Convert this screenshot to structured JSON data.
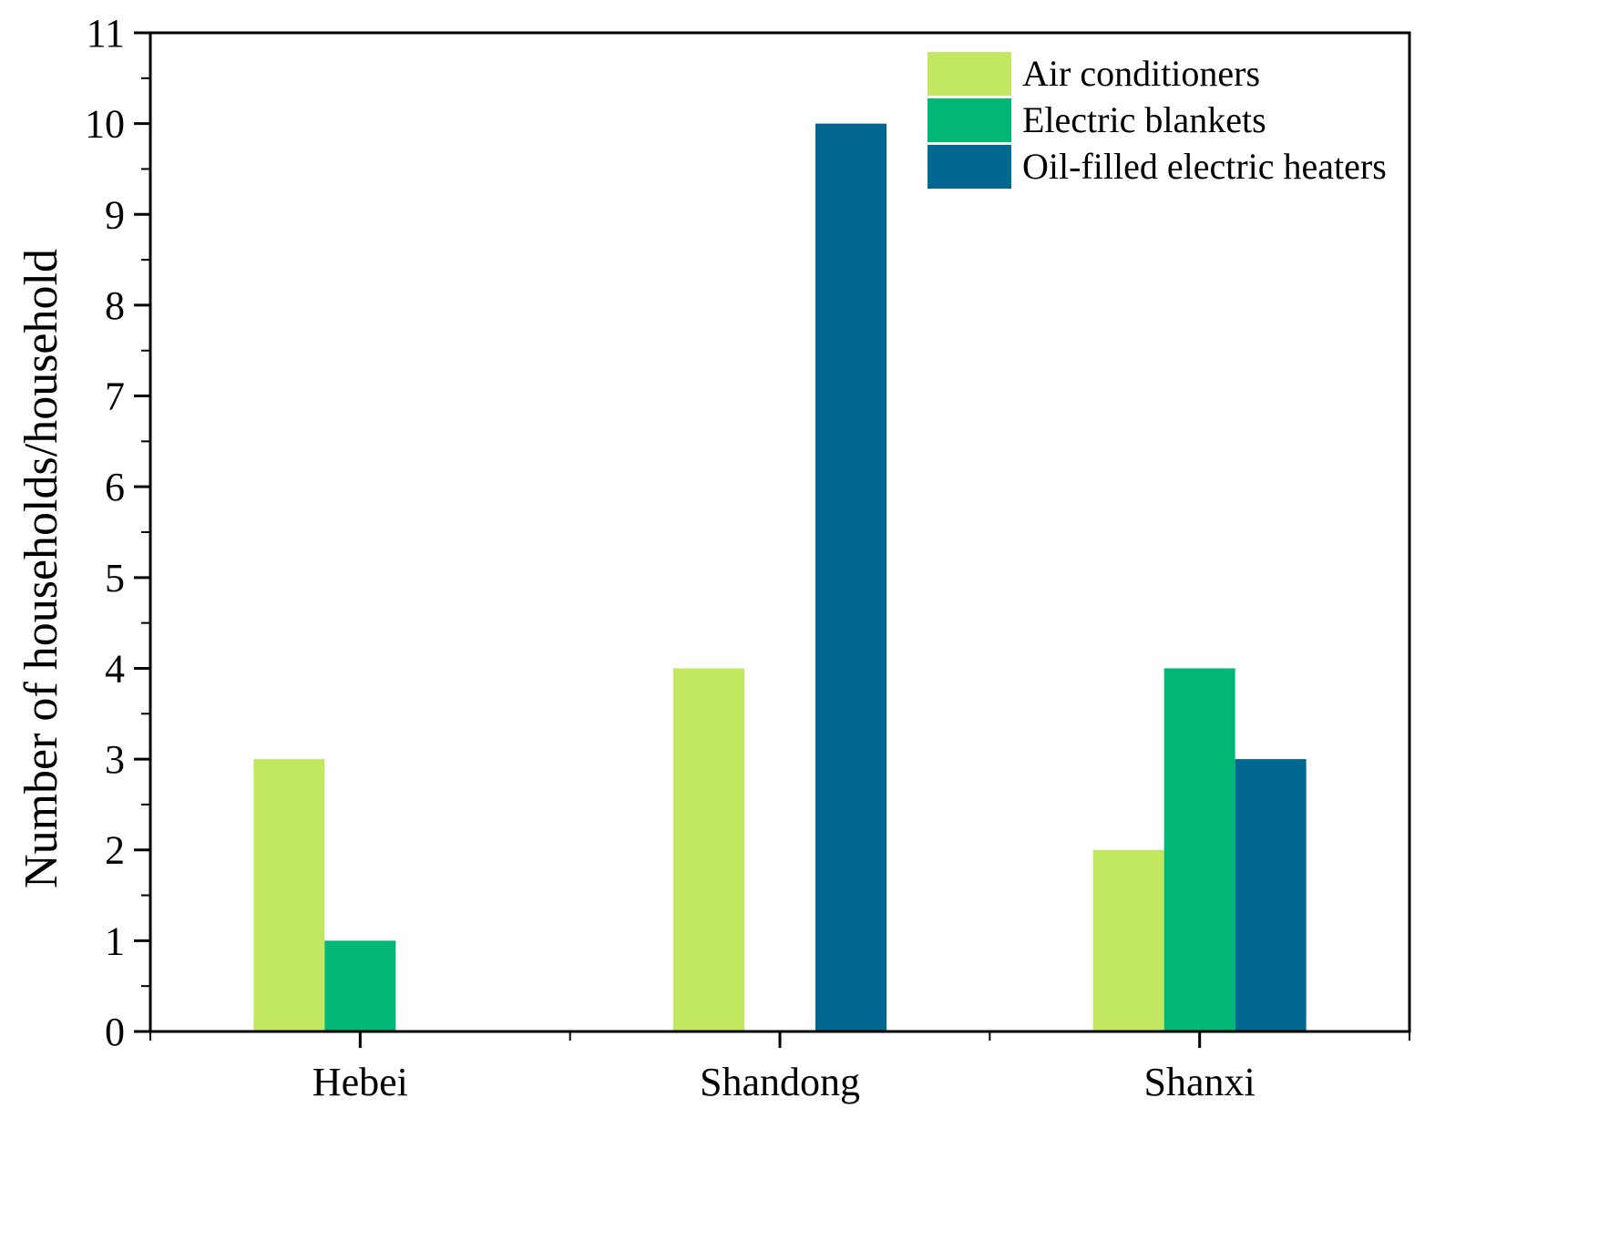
{
  "chart_data": {
    "type": "bar",
    "title": "",
    "xlabel": "",
    "ylabel": "Number of households/household",
    "categories": [
      "Hebei",
      "Shandong",
      "Shanxi"
    ],
    "series": [
      {
        "name": "Air conditioners",
        "color": "#c2e862",
        "values": [
          3,
          4,
          2
        ]
      },
      {
        "name": "Electric blankets",
        "color": "#00b776",
        "values": [
          1,
          0,
          4
        ]
      },
      {
        "name": "Oil-filled electric heaters",
        "color": "#006890",
        "values": [
          0,
          10,
          3
        ]
      }
    ],
    "ylim": [
      0,
      11
    ],
    "yticks": [
      0,
      1,
      2,
      3,
      4,
      5,
      6,
      7,
      8,
      9,
      10,
      11
    ],
    "grid": false,
    "legend": {
      "position": "top-right"
    }
  }
}
